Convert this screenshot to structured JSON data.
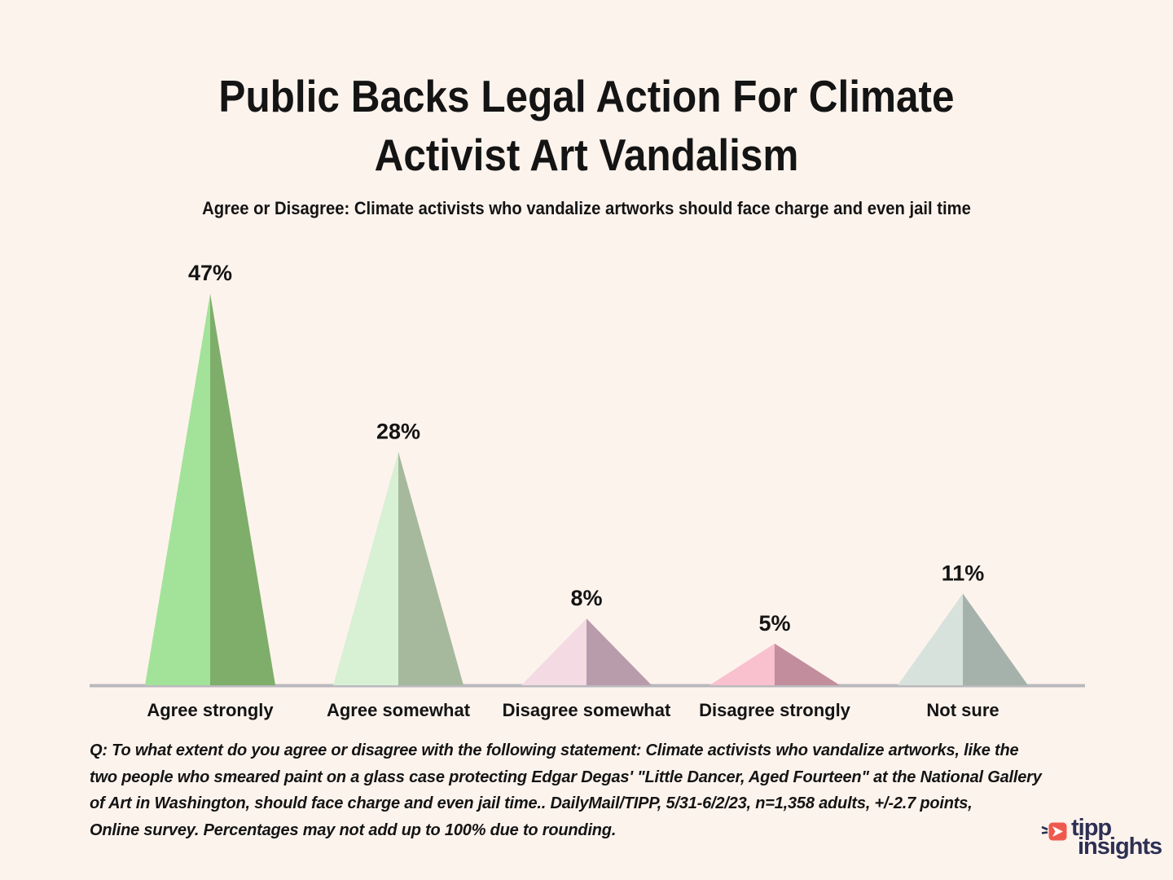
{
  "page": {
    "background": "#fdf3ed",
    "title_line1": "Public Backs Legal Action For Climate",
    "title_line2": "Activist Art Vandalism",
    "subtitle": "Agree or Disagree: Climate activists who vandalize artworks should face charge and even jail time"
  },
  "chart_data": {
    "type": "bar",
    "shape": "triangle-pyramid",
    "title": "Public Backs Legal Action For Climate Activist Art Vandalism",
    "subtitle": "Agree or Disagree: Climate activists who vandalize artworks should face charge and even jail time",
    "categories": [
      "Agree strongly",
      "Agree somewhat",
      "Disagree somewhat",
      "Disagree strongly",
      "Not sure"
    ],
    "values": [
      47,
      28,
      8,
      5,
      11
    ],
    "value_labels": [
      "47%",
      "28%",
      "8%",
      "5%",
      "11%"
    ],
    "unit": "%",
    "ylim": [
      0,
      50
    ],
    "grid": false,
    "legend": "none",
    "axis_color": "#b9b9bd",
    "colors": [
      {
        "light": "#a2e399",
        "dark": "#7eae6a"
      },
      {
        "light": "#d8f0d4",
        "dark": "#a6b99d"
      },
      {
        "light": "#f3dae3",
        "dark": "#b99cab"
      },
      {
        "light": "#f9c0ce",
        "dark": "#c28e9d"
      },
      {
        "light": "#d8e2dc",
        "dark": "#a5b2ab"
      }
    ]
  },
  "footer": {
    "lines": [
      "Q: To what extent do you agree or disagree with the following statement: Climate activists who vandalize artworks, like the",
      "two people who smeared paint on a glass case protecting Edgar Degas' \"Little Dancer, Aged Fourteen\" at the National Gallery",
      "of Art in Washington, should face charge and even jail time.. DailyMail/TIPP, 5/31-6/2/23, n=1,358 adults, +/-2.7 points,",
      "Online survey. Percentages may not add up to 100% due to rounding."
    ]
  },
  "logo": {
    "word1": "tipp",
    "word2": "insights",
    "navy": "#2d3054",
    "coral": "#ef594d"
  }
}
